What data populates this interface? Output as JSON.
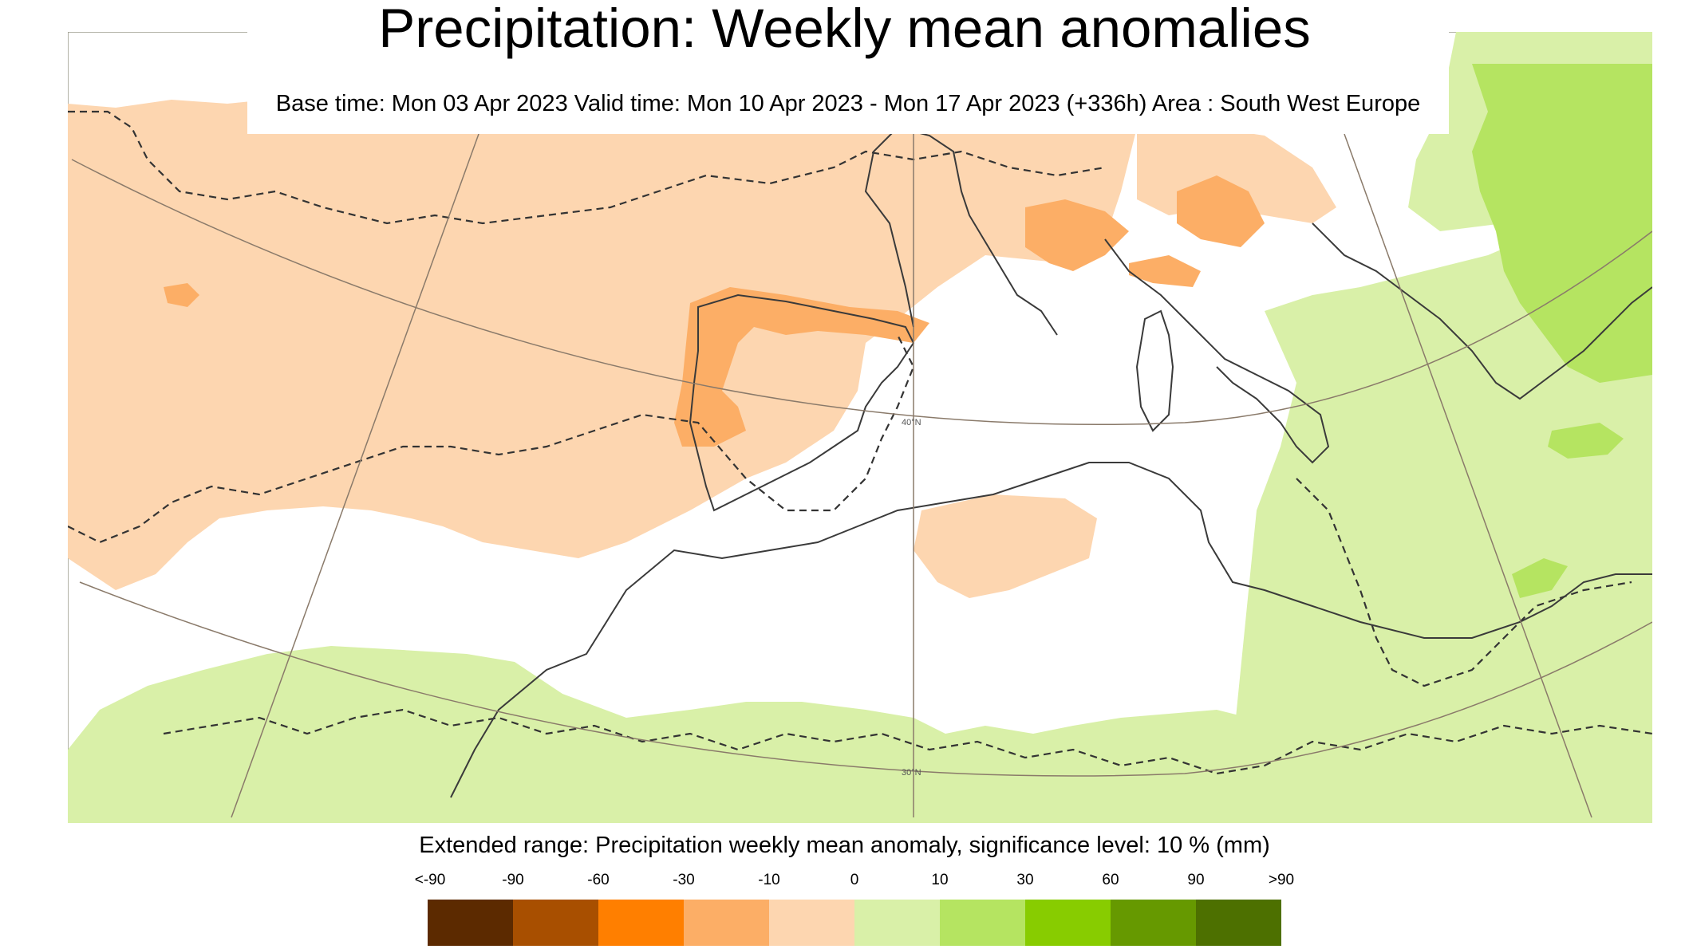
{
  "title": "Precipitation: Weekly mean anomalies",
  "subtitle": "Base time: Mon 03 Apr 2023 Valid time: Mon 10 Apr 2023 - Mon 17 Apr 2023 (+336h) Area : South West Europe",
  "map": {
    "graticule_labels": [
      "40°N",
      "30°N"
    ],
    "colors": {
      "background": "#ffffff",
      "dry_light": "#fdd6b0",
      "dry_medium": "#fcae66",
      "wet_light": "#d9f0a8",
      "wet_medium": "#b5e461",
      "coast": "#3a3a3a",
      "graticule": "#8a7a6a"
    }
  },
  "legend": {
    "title": "Extended range: Precipitation weekly mean anomaly, significance level: 10 % (mm)",
    "labels": [
      "<-90",
      "-90",
      "-60",
      "-30",
      "-10",
      "0",
      "10",
      "30",
      "60",
      "90",
      ">90"
    ],
    "colors": [
      "#5c2a00",
      "#a84f00",
      "#ff7f00",
      "#fcae66",
      "#fdd6b0",
      "#d9f0a8",
      "#b5e461",
      "#88cc00",
      "#669900",
      "#4d7000"
    ]
  }
}
